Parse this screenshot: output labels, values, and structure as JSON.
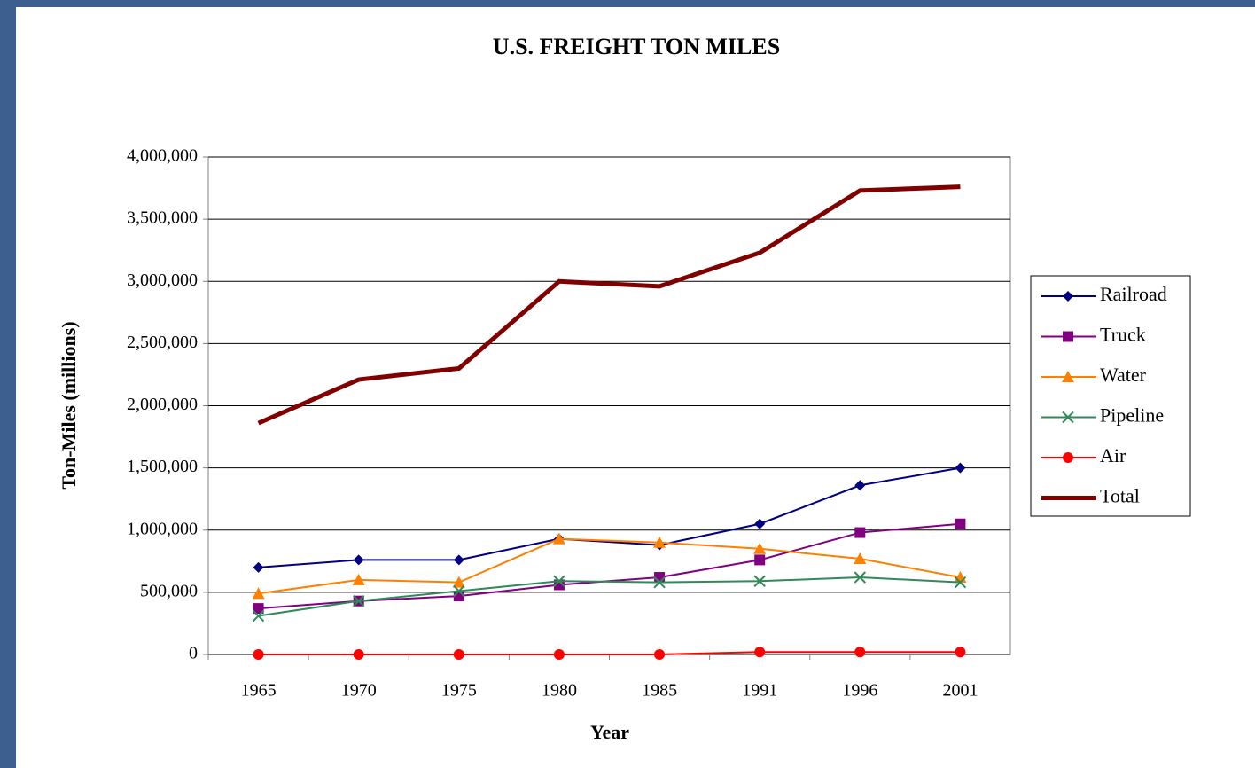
{
  "chart_data": {
    "type": "line",
    "title": "U.S. FREIGHT TON MILES",
    "x_label": "Year",
    "y_label": "Ton-Miles (millions)",
    "categories": [
      "1965",
      "1970",
      "1975",
      "1980",
      "1985",
      "1991",
      "1996",
      "2001"
    ],
    "ylim": [
      0,
      4000000
    ],
    "yticks": [
      0,
      {
        "value": 500000,
        "label": "500,000"
      },
      {
        "value": 1000000,
        "label": "1,000,000"
      },
      {
        "value": 1500000,
        "label": "1,500,000"
      },
      {
        "value": 2000000,
        "label": "2,000,000"
      },
      {
        "value": 2500000,
        "label": "2,500,000"
      },
      {
        "value": 3000000,
        "label": "3,000,000"
      },
      {
        "value": 3500000,
        "label": "3,500,000"
      },
      {
        "value": 4000000,
        "label": "4,000,000"
      }
    ],
    "grid": true,
    "legend": "right",
    "series": [
      {
        "name": "Railroad",
        "color": "#000080",
        "marker": "diamond",
        "values": [
          700000,
          760000,
          760000,
          930000,
          880000,
          1050000,
          1360000,
          1500000
        ]
      },
      {
        "name": "Truck",
        "color": "#800080",
        "marker": "square",
        "values": [
          370000,
          430000,
          470000,
          560000,
          620000,
          760000,
          980000,
          1050000
        ]
      },
      {
        "name": "Water",
        "color": "#ff8000",
        "marker": "triangle",
        "values": [
          490000,
          600000,
          580000,
          930000,
          900000,
          850000,
          770000,
          620000
        ]
      },
      {
        "name": "Pipeline",
        "color": "#2e8b57",
        "marker": "x",
        "values": [
          310000,
          430000,
          510000,
          590000,
          580000,
          590000,
          620000,
          580000
        ]
      },
      {
        "name": "Air",
        "color": "#ff0000",
        "marker": "circle",
        "values": [
          0,
          0,
          0,
          0,
          0,
          20000,
          20000,
          20000
        ]
      },
      {
        "name": "Total",
        "color": "#800000",
        "values": [
          1860000,
          2210000,
          2300000,
          3000000,
          2960000,
          3230000,
          3730000,
          3760000
        ]
      }
    ]
  }
}
